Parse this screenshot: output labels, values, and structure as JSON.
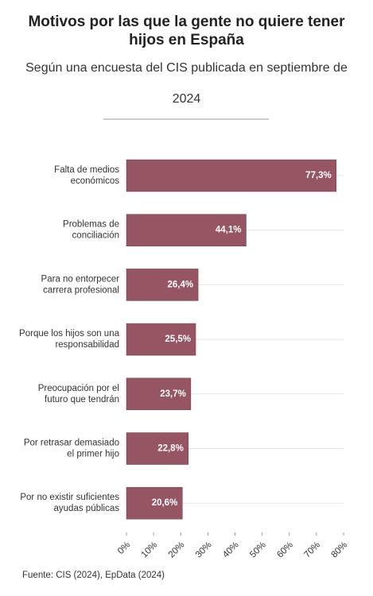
{
  "chart_data": {
    "type": "barh",
    "title": "Motivos por las que la gente no quiere tener hijos en España",
    "subtitle": "Según una encuesta del CIS publicada en septiembre de 2024",
    "source": "Fuente: CIS (2024), EpData (2024)",
    "categories": [
      "Falta de medios\neconómicos",
      "Problemas de\nconciliación",
      "Para no entorpecer\ncarrera profesional",
      "Porque los hijos son una\nresponsabilidad",
      "Preocupación por el\nfuturo que tendrán",
      "Por retrasar demasiado\nel primer hijo",
      "Por no existir suficientes\nayudas públicas"
    ],
    "values": [
      77.3,
      44.1,
      26.4,
      25.5,
      23.7,
      22.8,
      20.6
    ],
    "value_labels": [
      "77,3%",
      "44,1%",
      "26,4%",
      "25,5%",
      "23,7%",
      "22,8%",
      "20,6%"
    ],
    "color": "#955563",
    "xlim": [
      0,
      80
    ],
    "xticks": [
      {
        "value": 0,
        "label": "0%"
      },
      {
        "value": 10,
        "label": "10%"
      },
      {
        "value": 20,
        "label": "20%"
      },
      {
        "value": 30,
        "label": "30%"
      },
      {
        "value": 40,
        "label": "40%"
      },
      {
        "value": 50,
        "label": "50%"
      },
      {
        "value": 60,
        "label": "60%"
      },
      {
        "value": 70,
        "label": "70%"
      },
      {
        "value": 80,
        "label": "80%"
      }
    ]
  }
}
